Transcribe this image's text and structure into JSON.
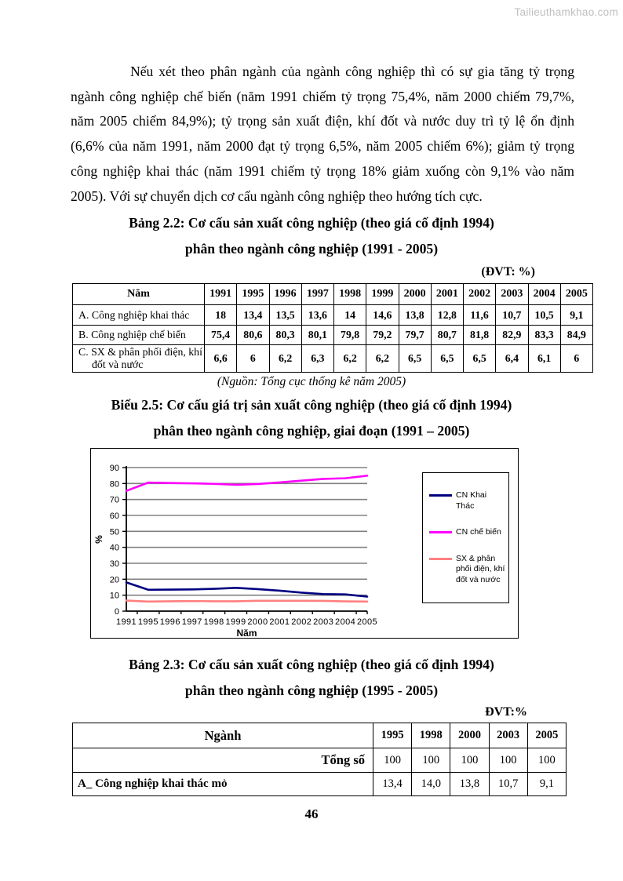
{
  "watermark": "Tailieuthamkhao.com",
  "paragraph": "Nếu xét theo phân ngành của ngành công nghiệp thì có sự gia tăng tỷ trọng ngành công nghiệp chế biến (năm 1991 chiếm tỷ trọng 75,4%, năm 2000 chiếm 79,7%, năm 2005 chiếm 84,9%); tỷ trọng sản xuất điện, khí đốt và nước duy trì tỷ lệ ổn định (6,6% của năm 1991, năm 2000 đạt tỷ trọng 6,5%, năm 2005 chiếm 6%); giảm tỷ trọng công nghiệp khai thác (năm 1991 chiếm tỷ trọng 18% giảm xuống còn 9,1% vào năm 2005). Với sự chuyển dịch cơ cấu ngành công nghiệp theo hướng tích cực.",
  "table22": {
    "title_line1": "Bảng 2.2: Cơ cấu sản xuất công nghiệp (theo giá cố định 1994)",
    "title_line2": "phân theo ngành công nghiệp (1991 - 2005)",
    "unit": "(ĐVT: %)",
    "header": [
      "Năm",
      "1991",
      "1995",
      "1996",
      "1997",
      "1998",
      "1999",
      "2000",
      "2001",
      "2002",
      "2003",
      "2004",
      "2005"
    ],
    "rows": [
      {
        "label": "A.  Công nghiệp khai thác",
        "values": [
          "18",
          "13,4",
          "13,5",
          "13,6",
          "14",
          "14,6",
          "13,8",
          "12,8",
          "11,6",
          "10,7",
          "10,5",
          "9,1"
        ]
      },
      {
        "label": "B.  Công nghiệp chế biến",
        "values": [
          "75,4",
          "80,6",
          "80,3",
          "80,1",
          "79,8",
          "79,2",
          "79,7",
          "80,7",
          "81,8",
          "82,9",
          "83,3",
          "84,9"
        ]
      },
      {
        "label": "C.  SX & phân phối điện, khí đốt và nước",
        "values": [
          "6,6",
          "6",
          "6,2",
          "6,3",
          "6,2",
          "6,2",
          "6,5",
          "6,5",
          "6,5",
          "6,4",
          "6,1",
          "6"
        ]
      }
    ],
    "source": "(Nguồn: Tổng cục thống kê năm 2005)"
  },
  "chart_titles": {
    "title_line1": "Biểu 2.5: Cơ cấu giá trị sản xuất công nghiệp (theo giá cố định 1994)",
    "title_line2": "phân theo ngành công nghiệp, giai đoạn (1991 – 2005)"
  },
  "chart_data": {
    "type": "line",
    "x_labels": [
      "1991",
      "1995",
      "1996",
      "1997",
      "1998",
      "1999",
      "2000",
      "2001",
      "2002",
      "2003",
      "2004",
      "2005"
    ],
    "series": [
      {
        "name": "CN Khai Thác",
        "color": "#000080",
        "values": [
          18,
          13.4,
          13.5,
          13.6,
          14,
          14.6,
          13.8,
          12.8,
          11.6,
          10.7,
          10.5,
          9.1
        ]
      },
      {
        "name": "CN chế biến",
        "color": "#FF00FF",
        "values": [
          75.4,
          80.6,
          80.3,
          80.1,
          79.8,
          79.2,
          79.7,
          80.7,
          81.8,
          82.9,
          83.3,
          84.9
        ]
      },
      {
        "name": "SX & phân phối điện, khí đốt và nước",
        "color": "#FF8080",
        "values": [
          6.6,
          6,
          6.2,
          6.3,
          6.2,
          6.2,
          6.5,
          6.5,
          6.5,
          6.4,
          6.1,
          6
        ]
      }
    ],
    "xlabel": "Năm",
    "ylabel": "%",
    "ylim": [
      0,
      90
    ],
    "ytick_step": 10,
    "grid": true,
    "gridline_color": "#808080",
    "legend_position": "right"
  },
  "table23": {
    "title_line1": "Bảng 2.3: Cơ cấu sản xuất công nghiệp (theo giá cố định 1994)",
    "title_line2": "phân theo ngành công nghiệp (1995 - 2005)",
    "unit": "ĐVT:%",
    "header": [
      "Ngành",
      "1995",
      "1998",
      "2000",
      "2003",
      "2005"
    ],
    "rows": [
      {
        "label": "Tổng số",
        "values": [
          "100",
          "100",
          "100",
          "100",
          "100"
        ]
      },
      {
        "label": "A_ Công nghiệp khai thác mỏ",
        "values": [
          "13,4",
          "14,0",
          "13,8",
          "10,7",
          "9,1"
        ]
      }
    ]
  },
  "page_number": "46"
}
